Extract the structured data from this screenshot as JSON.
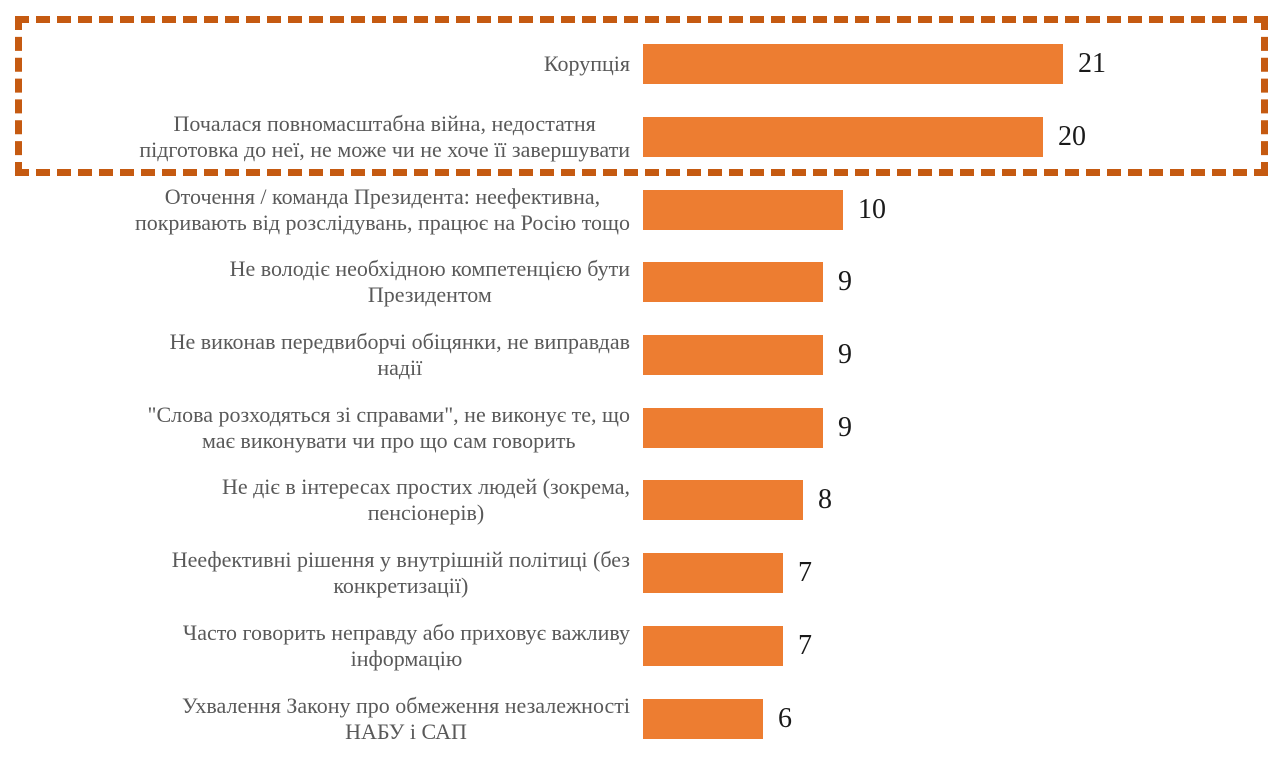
{
  "chart_data": {
    "type": "bar",
    "orientation": "horizontal",
    "title": "",
    "xlabel": "",
    "ylabel": "",
    "axis_visible": false,
    "gridlines": false,
    "legend": null,
    "data_labels_visible": true,
    "xlim": [
      0,
      22
    ],
    "categories": [
      "Корупція",
      "Почалася повномасштабна війна, недостатня підготовка до неї, не може чи не хоче її завершувати",
      "Оточення / команда Президента: неефективна, покривають від розслідувань, працює на Росію тощо",
      "Не володіє необхідною компетенцією бути Президентом",
      "Не виконав передвиборчі обіцянки, не виправдав надії",
      "\"Слова розходяться зі справами\", не виконує те, що має виконувати чи про що сам говорить",
      "Не діє в інтересах простих людей (зокрема, пенсіонерів)",
      "Неефективні рішення у внутрішній політиці (без конкретизації)",
      "Часто говорить неправду або приховує важливу інформацію",
      "Ухвалення Закону про обмеження незалежності НАБУ і САП"
    ],
    "values": [
      21,
      20,
      10,
      9,
      9,
      9,
      8,
      7,
      7,
      6
    ],
    "rows": [
      {
        "label_lines": [
          "Корупція"
        ],
        "value": 21
      },
      {
        "label_lines": [
          "Почалася повномасштабна війна, недостатня",
          "підготовка до неї, не може чи не хоче її завершувати"
        ],
        "value": 20
      },
      {
        "label_lines": [
          "Оточення / команда Президента: неефективна,",
          "покривають від розслідувань, працює на Росію тощо"
        ],
        "value": 10
      },
      {
        "label_lines": [
          "Не володіє необхідною компетенцією бути",
          "Президентом"
        ],
        "value": 9
      },
      {
        "label_lines": [
          "Не виконав передвиборчі обіцянки, не виправдав",
          "надії"
        ],
        "value": 9
      },
      {
        "label_lines": [
          "\"Слова розходяться зі справами\", не виконує те, що",
          "має виконувати чи про що сам говорить"
        ],
        "value": 9
      },
      {
        "label_lines": [
          "Не діє в інтересах простих людей (зокрема,",
          "пенсіонерів)"
        ],
        "value": 8
      },
      {
        "label_lines": [
          "Неефективні рішення у внутрішній політиці (без",
          "конкретизації)"
        ],
        "value": 7
      },
      {
        "label_lines": [
          "Часто говорить неправду або приховує важливу",
          "інформацію"
        ],
        "value": 7
      },
      {
        "label_lines": [
          "Ухвалення Закону про обмеження незалежності",
          "НАБУ і САП"
        ],
        "value": 6
      }
    ],
    "colors": {
      "bar": "#ED7D31",
      "highlight_box": "#C55A11",
      "category_label": "#595959",
      "value_label": "#1a1a1a",
      "background": "#ffffff"
    },
    "annotation": {
      "type": "dashed-box",
      "style": "dashed",
      "color": "#C55A11",
      "encloses_categories": [
        "Корупція",
        "Почалася повномасштабна війна, недостатня підготовка до неї, не може чи не хоче її завершувати"
      ]
    }
  }
}
